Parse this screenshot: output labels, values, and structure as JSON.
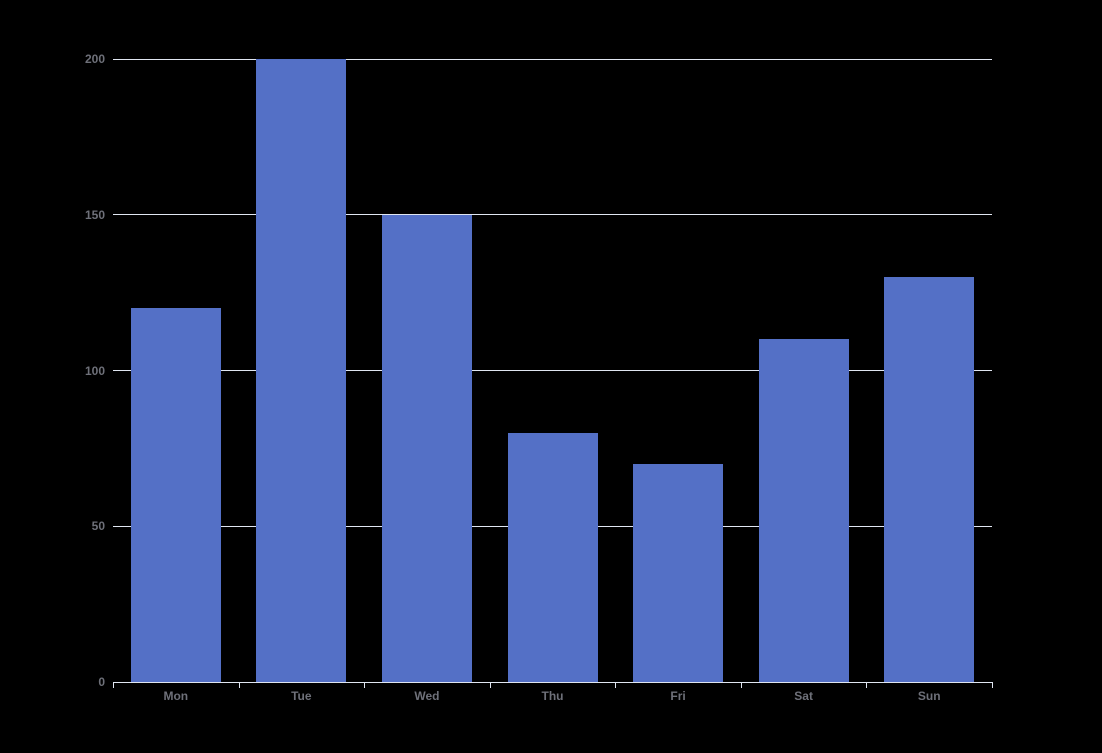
{
  "chart_data": {
    "type": "bar",
    "categories": [
      "Mon",
      "Tue",
      "Wed",
      "Thu",
      "Fri",
      "Sat",
      "Sun"
    ],
    "values": [
      120,
      200,
      150,
      80,
      70,
      110,
      130
    ],
    "ylim": [
      0,
      200
    ],
    "yticks": [
      0,
      50,
      100,
      150,
      200
    ],
    "grid": true,
    "legend": false
  },
  "style": {
    "background": "#000000",
    "bar_color": "#5470C6",
    "label_color": "#6E7079",
    "gridline_color": "#E0E6F1",
    "axis_color": "#E0E6F1"
  }
}
